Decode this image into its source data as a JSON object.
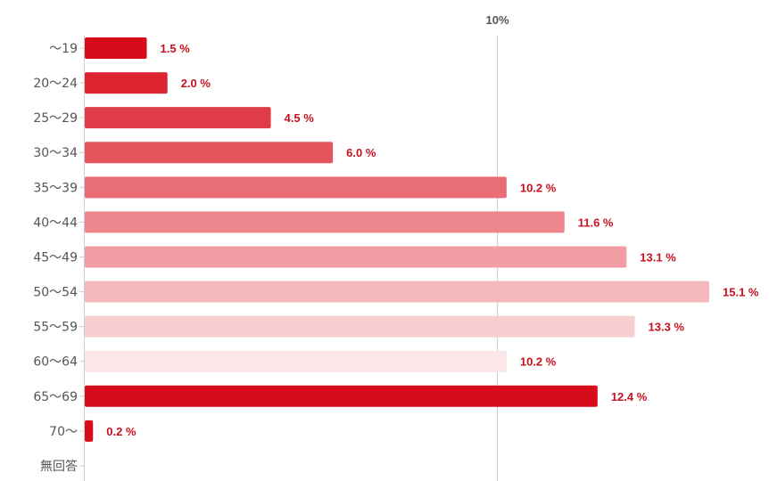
{
  "chart_data": {
    "type": "bar",
    "orientation": "horizontal",
    "categories": [
      "〜19",
      "20〜24",
      "25〜29",
      "30〜34",
      "35〜39",
      "40〜44",
      "45〜49",
      "50〜54",
      "55〜59",
      "60〜64",
      "65〜69",
      "70〜",
      "無回答"
    ],
    "values": [
      1.5,
      2.0,
      4.5,
      6.0,
      10.2,
      11.6,
      13.1,
      15.1,
      13.3,
      10.2,
      12.4,
      0.2,
      null
    ],
    "value_labels": [
      "1.5 %",
      "2.0 %",
      "4.5 %",
      "6.0 %",
      "10.2 %",
      "11.6 %",
      "13.1 %",
      "15.1 %",
      "13.3 %",
      "10.2 %",
      "12.4 %",
      "0.2 %",
      ""
    ],
    "colors": [
      "#d60c1b",
      "#dc2431",
      "#e03d48",
      "#e4555e",
      "#e86d75",
      "#ec868c",
      "#f09ea3",
      "#f4b7ba",
      "#f7cfd1",
      "#fbe7e8",
      "#d60c1b",
      "#d60c1b",
      "#d60c1b"
    ],
    "value_label_color": "#c8101e",
    "gridline": {
      "value": 10,
      "label": "10%"
    },
    "xlim": [
      0,
      15.1
    ],
    "title": "",
    "xlabel": "",
    "ylabel": ""
  }
}
